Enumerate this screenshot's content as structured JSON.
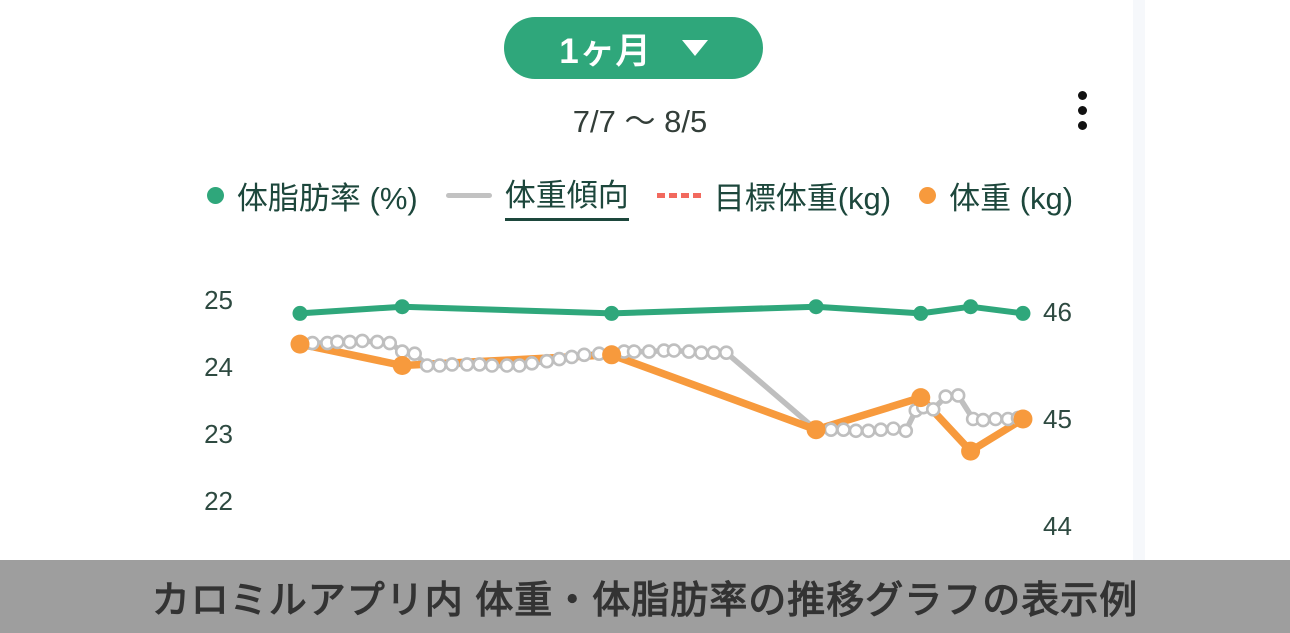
{
  "header": {
    "period_button": {
      "label": "1ヶ月"
    },
    "date_range": "7/7 〜 8/5"
  },
  "legend": {
    "items": [
      {
        "label": "体脂肪率 (%)",
        "swatch": "dot",
        "color": "#2FA77B",
        "underlined": false
      },
      {
        "label": "体重傾向",
        "swatch": "line",
        "color": "#C2C2C2",
        "underlined": true
      },
      {
        "label": "目標体重(kg)",
        "swatch": "dotted-line",
        "color": "#F2695E",
        "underlined": false
      },
      {
        "label": "体重 (kg)",
        "swatch": "dot",
        "color": "#F79A3D",
        "underlined": false
      }
    ]
  },
  "chart_data": {
    "type": "line",
    "title": "",
    "x_range": {
      "start_label": "7/7",
      "end_label": "8/5",
      "days": 30,
      "x_tick_labels_visible": false
    },
    "left_axis": {
      "label": "体脂肪率 (%)",
      "ticks": [
        25,
        24,
        23,
        22
      ],
      "range": [
        21.5,
        25.3
      ]
    },
    "right_axis": {
      "label": "体重 (kg)",
      "ticks": [
        46,
        45,
        44
      ],
      "range": [
        43.7,
        46.2
      ]
    },
    "grid": false,
    "legend_position": "top",
    "series": [
      {
        "id": "weight_trend",
        "name": "体重傾向",
        "axis": "right",
        "color": "#BFBFBF",
        "marker": "hollow-circle",
        "points": [
          [
            0,
            45.71
          ],
          [
            0.5,
            45.71
          ],
          [
            1.1,
            45.71
          ],
          [
            1.5,
            45.72
          ],
          [
            2.0,
            45.72
          ],
          [
            2.5,
            45.73
          ],
          [
            3.1,
            45.72
          ],
          [
            3.6,
            45.71
          ],
          [
            4.1,
            45.63
          ],
          [
            4.6,
            45.61
          ],
          [
            5.1,
            45.5
          ],
          [
            5.6,
            45.5
          ],
          [
            6.1,
            45.51
          ],
          [
            6.7,
            45.51
          ],
          [
            7.2,
            45.51
          ],
          [
            7.7,
            45.5
          ],
          [
            8.3,
            45.5
          ],
          [
            8.8,
            45.5
          ],
          [
            9.3,
            45.52
          ],
          [
            9.9,
            45.54
          ],
          [
            10.4,
            45.56
          ],
          [
            10.9,
            45.58
          ],
          [
            11.4,
            45.6
          ],
          [
            12.0,
            45.61
          ],
          [
            12.5,
            45.62
          ],
          [
            13.0,
            45.63
          ],
          [
            13.4,
            45.63
          ],
          [
            14.0,
            45.63
          ],
          [
            14.6,
            45.64
          ],
          [
            15.0,
            45.64
          ],
          [
            15.6,
            45.63
          ],
          [
            16.1,
            45.62
          ],
          [
            16.6,
            45.62
          ],
          [
            17.1,
            45.62
          ],
          [
            20.7,
            44.9,
            0
          ],
          [
            21.3,
            44.9
          ],
          [
            21.8,
            44.9
          ],
          [
            22.3,
            44.89
          ],
          [
            22.8,
            44.89
          ],
          [
            23.3,
            44.9
          ],
          [
            23.8,
            44.91
          ],
          [
            24.3,
            44.89
          ],
          [
            24.7,
            45.08
          ],
          [
            25.0,
            45.11
          ],
          [
            25.4,
            45.09
          ],
          [
            25.9,
            45.21
          ],
          [
            26.4,
            45.22
          ],
          [
            27.0,
            45.0
          ],
          [
            27.4,
            44.99
          ],
          [
            27.9,
            45.0
          ],
          [
            28.4,
            45.0
          ],
          [
            28.8,
            45.01
          ]
        ]
      },
      {
        "id": "weight",
        "name": "体重 (kg)",
        "axis": "right",
        "color": "#F79A3D",
        "marker": "filled-circle",
        "days": [
          0,
          4.1,
          12.5,
          20.7,
          24.9,
          26.9,
          29
        ],
        "values": [
          45.7,
          45.5,
          45.6,
          44.9,
          45.2,
          44.7,
          45.0
        ]
      },
      {
        "id": "body_fat",
        "name": "体脂肪率 (%)",
        "axis": "left",
        "color": "#2FA77B",
        "marker": "filled-circle",
        "days": [
          0,
          4.1,
          12.5,
          20.7,
          24.9,
          26.9,
          29
        ],
        "values": [
          24.8,
          24.9,
          24.8,
          24.9,
          24.8,
          24.9,
          24.8
        ]
      },
      {
        "id": "target_weight",
        "name": "目標体重(kg)",
        "axis": "right",
        "color": "#F2695E",
        "style": "dotted",
        "days": [],
        "values": [],
        "note_visible_in_plot": "no"
      }
    ]
  },
  "caption": "カロミルアプリ内 体重・体脂肪率の推移グラフの表示例",
  "colors": {
    "accent_green": "#2FA77B",
    "orange": "#F79A3D",
    "trend_gray": "#BFBFBF",
    "target_red": "#F2695E",
    "legend_text": "#1D473C",
    "axis_text": "#2E4A41",
    "date_text": "#333E39",
    "caption_bg": "#9E9E9E",
    "caption_text": "#333333",
    "app_edge_strip": "#F6F8FB"
  }
}
